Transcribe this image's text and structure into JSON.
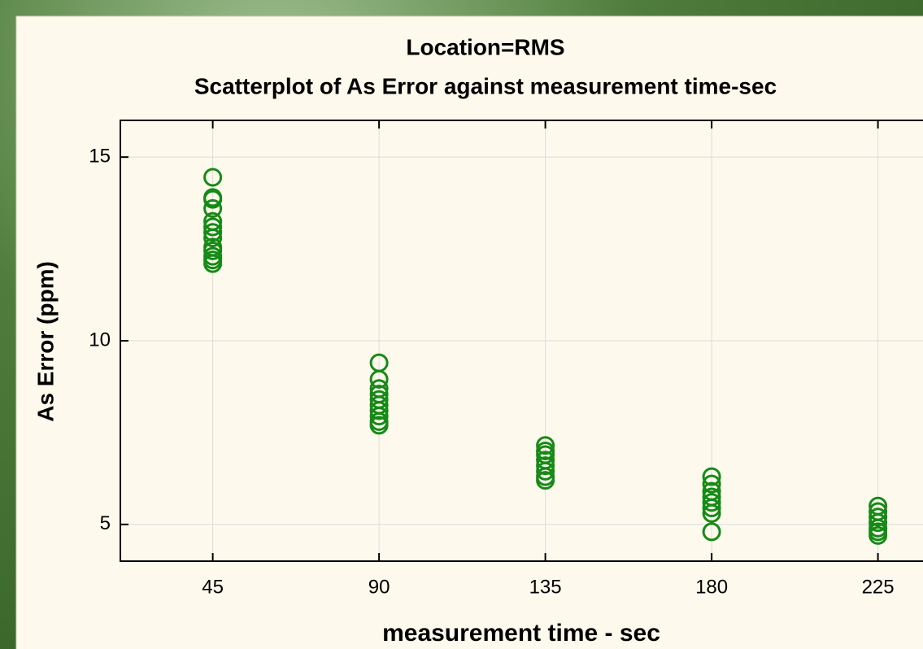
{
  "chart_data": {
    "type": "scatter",
    "title": "Location=RMS",
    "subtitle": "Scatterplot of As Error against measurement time-sec",
    "x_label": "measurement time - sec",
    "y_label": "As Error (ppm)",
    "x": [
      45,
      45,
      45,
      45,
      45,
      45,
      45,
      45,
      45,
      45,
      45,
      45,
      45,
      90,
      90,
      90,
      90,
      90,
      90,
      90,
      90,
      90,
      90,
      135,
      135,
      135,
      135,
      135,
      135,
      135,
      135,
      180,
      180,
      180,
      180,
      180,
      180,
      180,
      180,
      225,
      225,
      225,
      225,
      225,
      225,
      225
    ],
    "y": [
      14.45,
      13.9,
      13.85,
      13.6,
      13.25,
      13.1,
      12.95,
      12.8,
      12.55,
      12.45,
      12.3,
      12.2,
      12.1,
      9.4,
      8.95,
      8.7,
      8.55,
      8.4,
      8.25,
      8.1,
      7.95,
      7.8,
      7.7,
      7.15,
      7.0,
      6.9,
      6.75,
      6.6,
      6.45,
      6.3,
      6.2,
      6.3,
      6.1,
      5.9,
      5.75,
      5.6,
      5.45,
      5.3,
      4.8,
      5.5,
      5.35,
      5.2,
      5.05,
      4.9,
      4.8,
      4.7
    ],
    "color": "#168a16",
    "xlim": [
      20,
      250
    ],
    "ylim": [
      4,
      16
    ],
    "xticks": [
      45,
      90,
      135,
      180,
      225
    ],
    "yticks": [
      5,
      10,
      15
    ],
    "grid": true
  }
}
